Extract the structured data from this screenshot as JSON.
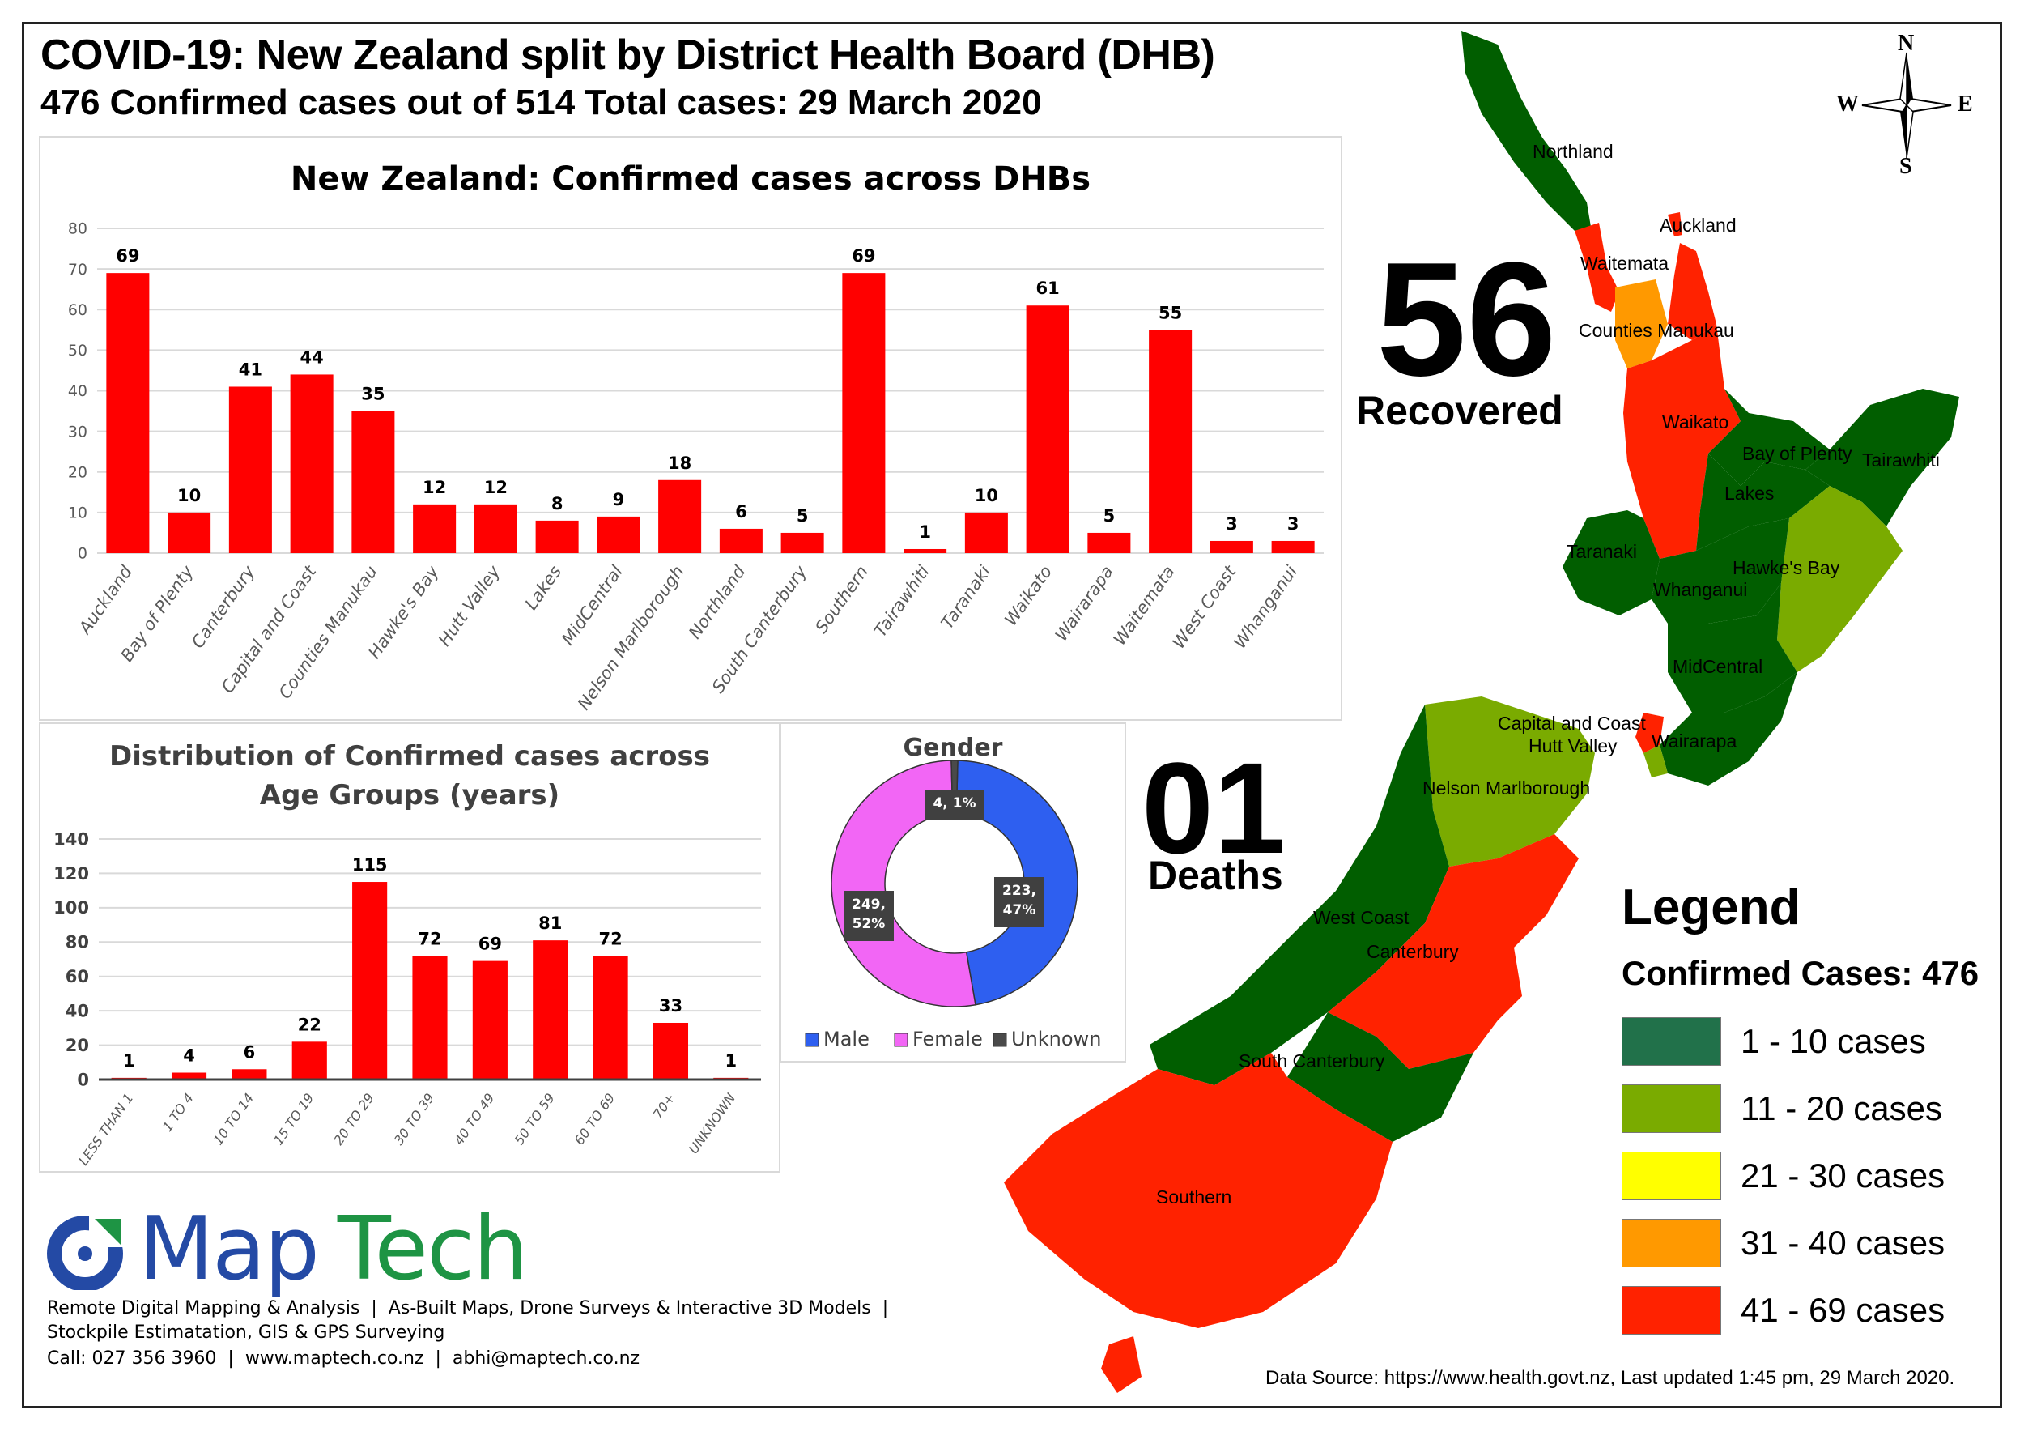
{
  "header": {
    "title": "COVID-19: New Zealand split by District Health Board (DHB)",
    "subtitle": "476 Confirmed cases out of 514 Total cases: 29 March 2020"
  },
  "stats": {
    "recovered_value": "56",
    "recovered_label": "Recovered",
    "deaths_value": "01",
    "deaths_label": "Deaths"
  },
  "compass": {
    "n": "N",
    "s": "S",
    "e": "E",
    "w": "W"
  },
  "chart_data": [
    {
      "type": "bar",
      "title": "New Zealand: Confirmed cases across DHBs",
      "xlabel": "",
      "ylabel": "",
      "ylim": [
        0,
        80
      ],
      "yticks": [
        0,
        10,
        20,
        30,
        40,
        50,
        60,
        70,
        80
      ],
      "grid": true,
      "color": "#ff0000",
      "categories": [
        "Auckland",
        "Bay of Plenty",
        "Canterbury",
        "Capital and Coast",
        "Counties Manukau",
        "Hawke's Bay",
        "Hutt Valley",
        "Lakes",
        "MidCentral",
        "Nelson Marlborough",
        "Northland",
        "South Canterbury",
        "Southern",
        "Tairawhiti",
        "Taranaki",
        "Waikato",
        "Wairarapa",
        "Waitemata",
        "West Coast",
        "Whanganui"
      ],
      "values": [
        69,
        10,
        41,
        44,
        35,
        12,
        12,
        8,
        9,
        18,
        6,
        5,
        69,
        1,
        10,
        61,
        5,
        55,
        3,
        3
      ]
    },
    {
      "type": "bar",
      "title": "Distribution of Confirmed cases across Age Groups (years)",
      "title_line1": "Distribution of Confirmed cases across",
      "title_line2": "Age Groups (years)",
      "xlabel": "",
      "ylabel": "",
      "ylim": [
        0,
        140
      ],
      "yticks": [
        0,
        20,
        40,
        60,
        80,
        100,
        120,
        140
      ],
      "grid": true,
      "color": "#ff0000",
      "categories": [
        "LESS THAN 1",
        "1 TO 4",
        "10 TO 14",
        "15 TO 19",
        "20 TO 29",
        "30 TO 39",
        "40 TO 49",
        "50 TO 59",
        "60 TO 69",
        "70+",
        "UNKNOWN"
      ],
      "values": [
        1,
        4,
        6,
        22,
        115,
        72,
        69,
        81,
        72,
        33,
        1
      ]
    },
    {
      "type": "pie",
      "subtype": "donut",
      "title": "Gender",
      "legend_position": "bottom",
      "categories": [
        "Male",
        "Female",
        "Unknown"
      ],
      "values": [
        223,
        249,
        4
      ],
      "percentages": [
        47,
        52,
        1
      ],
      "labels": [
        "223, 47%",
        "249, 52%",
        "4, 1%"
      ],
      "label_lines": [
        [
          "223,",
          "47%"
        ],
        [
          "249,",
          "52%"
        ],
        [
          "4, 1%"
        ]
      ],
      "colors": [
        "#2e5ff0",
        "#f266f5",
        "#4a4a4a"
      ]
    }
  ],
  "map": {
    "labels": {
      "northland": "Northland",
      "auckland": "Auckland",
      "waitemata": "Waitemata",
      "counties": "Counties Manukau",
      "waikato": "Waikato",
      "bop": "Bay of Plenty",
      "tairawhiti": "Tairawhiti",
      "lakes": "Lakes",
      "taranaki": "Taranaki",
      "hawkes": "Hawke's Bay",
      "whanganui": "Whanganui",
      "midcentral": "MidCentral",
      "capital": "Capital and Coast",
      "hutt": "Hutt Valley",
      "wairarapa": "Wairarapa",
      "nelson": "Nelson Marlborough",
      "westcoast": "West Coast",
      "canterbury": "Canterbury",
      "southcant": "South Canterbury",
      "southern": "Southern"
    },
    "colors": {
      "dark_green": "#015e00",
      "light_green": "#7aab00",
      "orange": "#ff9900",
      "red": "#ff2200"
    }
  },
  "legend": {
    "title": "Legend",
    "subtitle": "Confirmed Cases: 476",
    "items": [
      {
        "label": "1 - 10 cases",
        "color": "#21714a"
      },
      {
        "label": "11 - 20 cases",
        "color": "#7aab00"
      },
      {
        "label": "21 - 30 cases",
        "color": "#ffff00"
      },
      {
        "label": "31 - 40 cases",
        "color": "#ff9900"
      },
      {
        "label": "41 - 69 cases",
        "color": "#ff2200"
      }
    ]
  },
  "footer": {
    "brand_word1": "Map",
    "brand_word2": "Tech",
    "line1": "Remote Digital Mapping & Analysis  |  As-Built Maps, Drone Surveys & Interactive 3D Models  |",
    "line2": "Stockpile Estimatation, GIS & GPS Surveying",
    "line3": "Call: 027 356 3960  |  www.maptech.co.nz  |  abhi@maptech.co.nz",
    "source": "Data Source: https://www.health.govt.nz, Last updated 1:45 pm, 29 March 2020."
  }
}
